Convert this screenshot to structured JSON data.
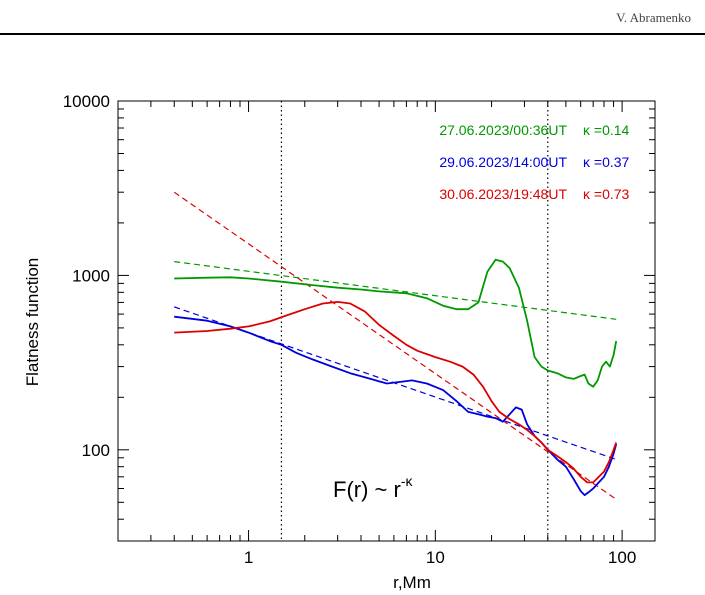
{
  "page": {
    "author": "V. Abramenko"
  },
  "chart_data": {
    "type": "line",
    "xlabel": "r,Mm",
    "ylabel": "Flatness function",
    "xscale": "log",
    "yscale": "log",
    "xlim": [
      0.2,
      150
    ],
    "ylim": [
      30,
      10000
    ],
    "x_ticks": [
      1,
      10,
      100
    ],
    "x_tick_labels": [
      "1",
      "10",
      "100"
    ],
    "y_ticks": [
      100,
      1000,
      10000
    ],
    "y_tick_labels": [
      "100",
      "1000",
      "10000"
    ],
    "vlines": [
      1.5,
      40
    ],
    "annotation": {
      "main": "F(r) ~ r",
      "superscript": "-κ"
    },
    "legend_placement": "top-right",
    "series": [
      {
        "name": "27.06.2023/00:36UT",
        "kappa_label": "κ =0.14",
        "color": "#009900",
        "points": [
          [
            0.4,
            960
          ],
          [
            0.6,
            970
          ],
          [
            0.8,
            975
          ],
          [
            1.0,
            960
          ],
          [
            1.5,
            920
          ],
          [
            2.2,
            880
          ],
          [
            3,
            850
          ],
          [
            4,
            830
          ],
          [
            5,
            810
          ],
          [
            7,
            790
          ],
          [
            9,
            740
          ],
          [
            11,
            670
          ],
          [
            13,
            640
          ],
          [
            15,
            640
          ],
          [
            17,
            700
          ],
          [
            19,
            1050
          ],
          [
            21,
            1230
          ],
          [
            23,
            1200
          ],
          [
            25,
            1100
          ],
          [
            28,
            850
          ],
          [
            31,
            550
          ],
          [
            34,
            340
          ],
          [
            37,
            300
          ],
          [
            40,
            285
          ],
          [
            45,
            275
          ],
          [
            50,
            260
          ],
          [
            55,
            255
          ],
          [
            60,
            265
          ],
          [
            63,
            270
          ],
          [
            66,
            240
          ],
          [
            70,
            230
          ],
          [
            74,
            250
          ],
          [
            78,
            300
          ],
          [
            82,
            320
          ],
          [
            86,
            300
          ],
          [
            90,
            350
          ],
          [
            93,
            420
          ]
        ],
        "fit": {
          "x": [
            0.4,
            93
          ],
          "y": [
            1200,
            560
          ]
        }
      },
      {
        "name": "29.06.2023/14:00UT",
        "kappa_label": "κ =0.37",
        "color": "#0000dd",
        "points": [
          [
            0.4,
            580
          ],
          [
            0.6,
            550
          ],
          [
            0.8,
            510
          ],
          [
            1.0,
            470
          ],
          [
            1.3,
            420
          ],
          [
            1.5,
            400
          ],
          [
            1.8,
            360
          ],
          [
            2.2,
            330
          ],
          [
            2.8,
            300
          ],
          [
            3.5,
            275
          ],
          [
            4.5,
            255
          ],
          [
            5.5,
            240
          ],
          [
            6.5,
            245
          ],
          [
            7.5,
            250
          ],
          [
            9,
            240
          ],
          [
            11,
            220
          ],
          [
            13,
            190
          ],
          [
            15,
            165
          ],
          [
            17,
            160
          ],
          [
            19,
            155
          ],
          [
            21,
            152
          ],
          [
            23,
            145
          ],
          [
            25,
            160
          ],
          [
            27,
            175
          ],
          [
            29,
            170
          ],
          [
            31,
            140
          ],
          [
            34,
            120
          ],
          [
            37,
            110
          ],
          [
            40,
            100
          ],
          [
            45,
            88
          ],
          [
            50,
            80
          ],
          [
            55,
            68
          ],
          [
            60,
            58
          ],
          [
            63,
            55
          ],
          [
            66,
            57
          ],
          [
            70,
            60
          ],
          [
            75,
            65
          ],
          [
            80,
            70
          ],
          [
            85,
            80
          ],
          [
            90,
            95
          ],
          [
            93,
            108
          ]
        ],
        "fit": {
          "x": [
            0.4,
            93
          ],
          "y": [
            660,
            88
          ]
        }
      },
      {
        "name": "30.06.2023/19:48UT",
        "kappa_label": "κ =0.73",
        "color": "#dd0000",
        "points": [
          [
            0.4,
            470
          ],
          [
            0.6,
            480
          ],
          [
            0.8,
            495
          ],
          [
            1.0,
            510
          ],
          [
            1.3,
            545
          ],
          [
            1.6,
            590
          ],
          [
            2.0,
            640
          ],
          [
            2.5,
            690
          ],
          [
            3.0,
            705
          ],
          [
            3.5,
            690
          ],
          [
            4.2,
            620
          ],
          [
            5,
            520
          ],
          [
            6,
            450
          ],
          [
            7,
            400
          ],
          [
            8,
            370
          ],
          [
            10,
            340
          ],
          [
            12,
            320
          ],
          [
            14,
            300
          ],
          [
            16,
            270
          ],
          [
            18,
            230
          ],
          [
            20,
            190
          ],
          [
            22,
            165
          ],
          [
            25,
            150
          ],
          [
            28,
            140
          ],
          [
            31,
            130
          ],
          [
            34,
            120
          ],
          [
            37,
            110
          ],
          [
            40,
            100
          ],
          [
            45,
            92
          ],
          [
            50,
            85
          ],
          [
            55,
            78
          ],
          [
            60,
            70
          ],
          [
            65,
            65
          ],
          [
            70,
            65
          ],
          [
            75,
            70
          ],
          [
            80,
            75
          ],
          [
            85,
            85
          ],
          [
            90,
            100
          ],
          [
            93,
            110
          ]
        ],
        "fit": {
          "x": [
            0.4,
            93
          ],
          "y": [
            3000,
            52
          ]
        }
      }
    ]
  }
}
